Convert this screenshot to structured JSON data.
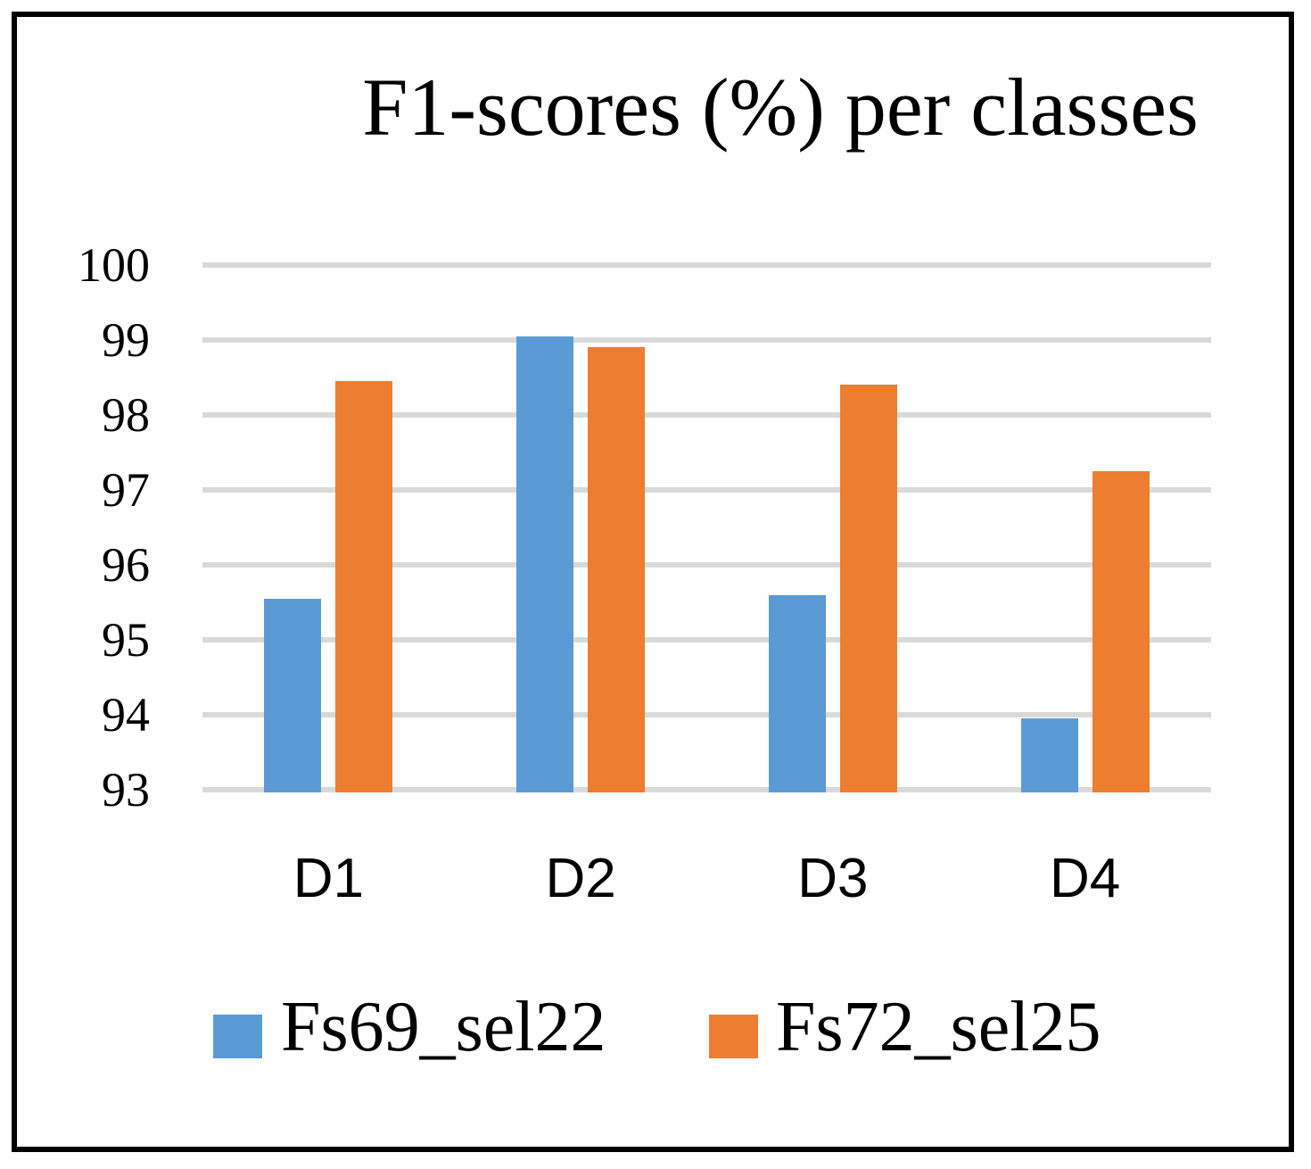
{
  "chart_data": {
    "type": "bar",
    "title": "F1-scores (%) per classes",
    "categories": [
      "D1",
      "D2",
      "D3",
      "D4"
    ],
    "series": [
      {
        "name": "Fs69_sel22",
        "color": "#5B9BD5",
        "values": [
          95.55,
          99.05,
          95.6,
          93.95
        ]
      },
      {
        "name": "Fs72_sel25",
        "color": "#ED7D31",
        "values": [
          98.45,
          98.9,
          98.4,
          97.25
        ]
      }
    ],
    "xlabel": "",
    "ylabel": "",
    "ylim": [
      93,
      100
    ],
    "yticks": [
      100,
      99,
      98,
      97,
      96,
      95,
      94,
      93
    ],
    "grid": "horizontal",
    "gridline_color": "#D9D9D9",
    "legend_position": "bottom",
    "frame_color": "#000000",
    "background_color": "#FFFFFF"
  }
}
